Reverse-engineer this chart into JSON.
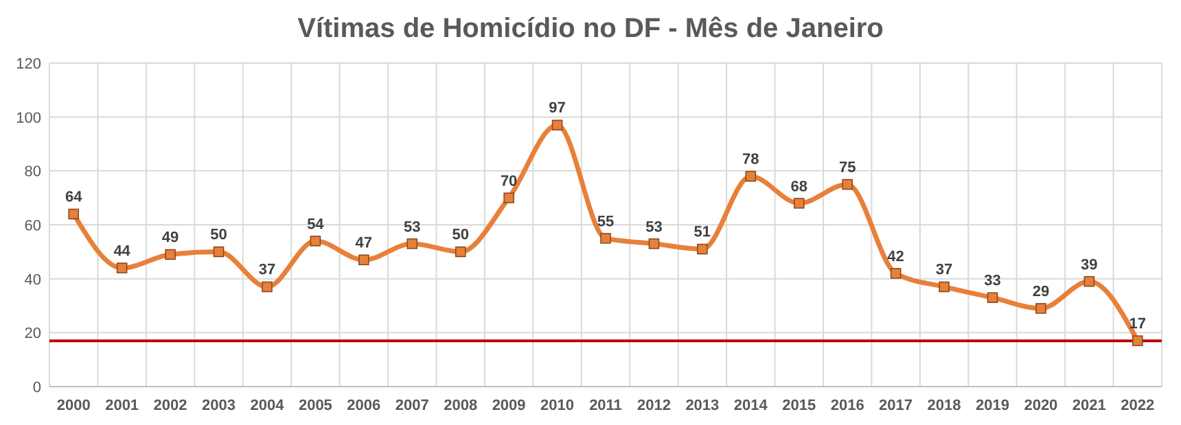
{
  "chart_data": {
    "type": "line",
    "title": "Vítimas de Homicídio no DF - Mês de Janeiro",
    "categories": [
      "2000",
      "2001",
      "2002",
      "2003",
      "2004",
      "2005",
      "2006",
      "2007",
      "2008",
      "2009",
      "2010",
      "2011",
      "2012",
      "2013",
      "2014",
      "2015",
      "2016",
      "2017",
      "2018",
      "2019",
      "2020",
      "2021",
      "2022"
    ],
    "series": [
      {
        "color": "#e8803a",
        "values": [
          64,
          44,
          49,
          50,
          37,
          54,
          47,
          53,
          50,
          70,
          97,
          55,
          53,
          51,
          78,
          68,
          75,
          42,
          37,
          33,
          29,
          39,
          17
        ]
      }
    ],
    "ylim": [
      0,
      120
    ],
    "yticks": [
      0,
      20,
      40,
      60,
      80,
      100,
      120
    ],
    "grid": true,
    "marker": "square",
    "data_labels": true,
    "ref_lines": [
      {
        "axis": "y",
        "value": 17,
        "color": "#c00000"
      }
    ]
  }
}
